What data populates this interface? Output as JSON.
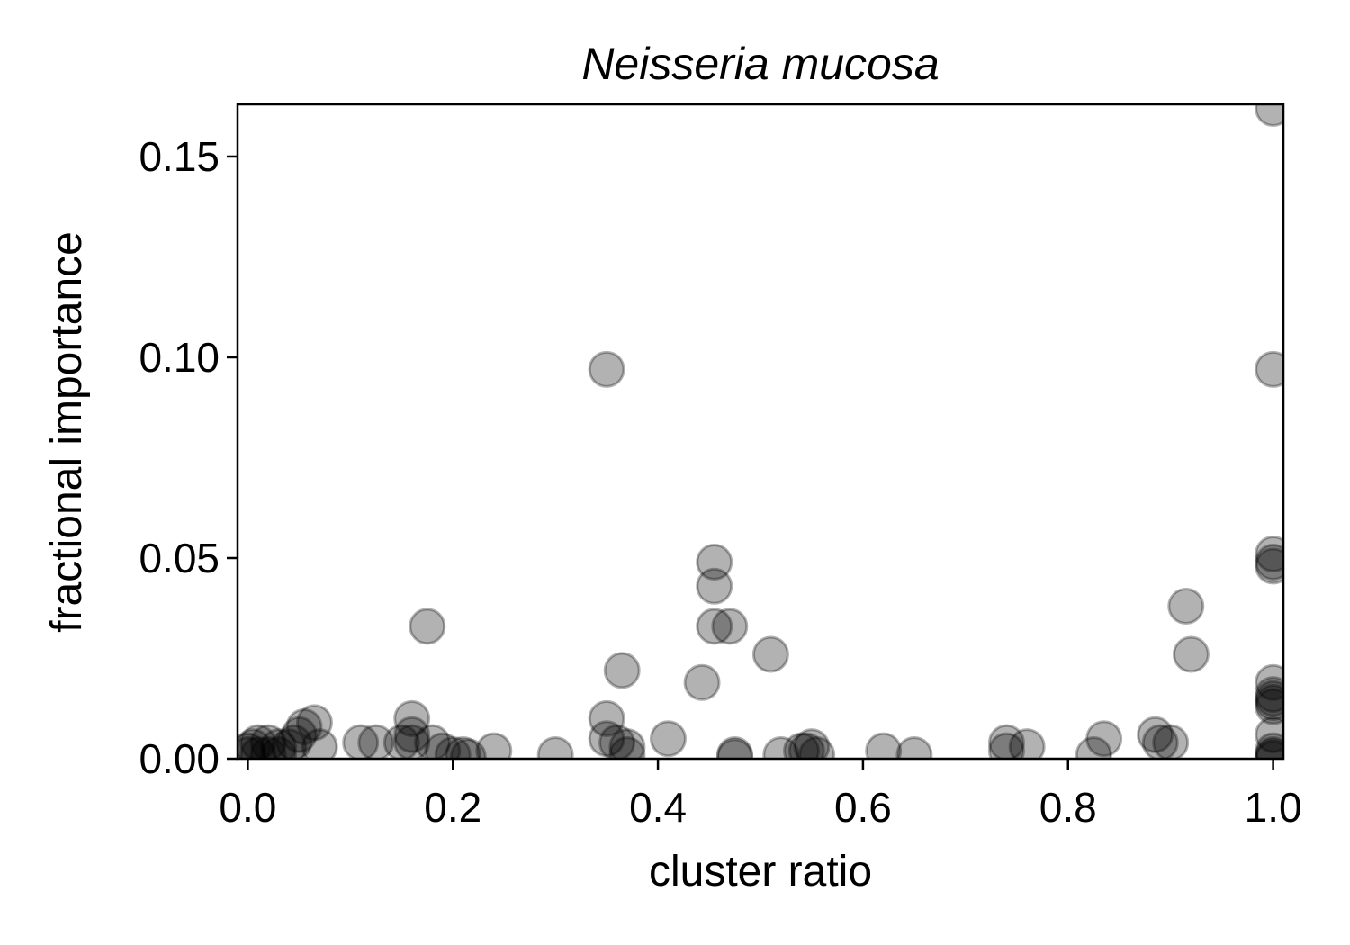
{
  "chart_data": {
    "type": "scatter",
    "title": "Neisseria mucosa",
    "xlabel": "cluster ratio",
    "ylabel": "fractional importance",
    "xlim": [
      -0.01,
      1.01
    ],
    "ylim": [
      0.0,
      0.163
    ],
    "xticks": [
      0.0,
      0.2,
      0.4,
      0.6,
      0.8,
      1.0
    ],
    "xtick_labels": [
      "0.0",
      "0.2",
      "0.4",
      "0.6",
      "0.8",
      "1.0"
    ],
    "yticks": [
      0.0,
      0.05,
      0.1,
      0.15
    ],
    "ytick_labels": [
      "0.00",
      "0.05",
      "0.10",
      "0.15"
    ],
    "grid": false,
    "marker_color": "#000000",
    "marker_alpha": 0.3,
    "points": [
      [
        1.0,
        0.162
      ],
      [
        1.0,
        0.097
      ],
      [
        0.35,
        0.097
      ],
      [
        1.0,
        0.051
      ],
      [
        1.0,
        0.049
      ],
      [
        1.0,
        0.048
      ],
      [
        0.455,
        0.049
      ],
      [
        0.455,
        0.043
      ],
      [
        0.455,
        0.033
      ],
      [
        0.47,
        0.033
      ],
      [
        0.915,
        0.038
      ],
      [
        0.92,
        0.026
      ],
      [
        0.51,
        0.026
      ],
      [
        0.175,
        0.033
      ],
      [
        0.365,
        0.022
      ],
      [
        0.443,
        0.019
      ],
      [
        1.0,
        0.019
      ],
      [
        1.0,
        0.016
      ],
      [
        1.0,
        0.015
      ],
      [
        1.0,
        0.014
      ],
      [
        1.0,
        0.013
      ],
      [
        1.0,
        0.006
      ],
      [
        1.0,
        0.002
      ],
      [
        1.0,
        0.001
      ],
      [
        1.0,
        0.0005
      ],
      [
        1.0,
        0.0
      ],
      [
        0.16,
        0.01
      ],
      [
        0.16,
        0.006
      ],
      [
        0.16,
        0.004
      ],
      [
        0.15,
        0.004
      ],
      [
        0.18,
        0.004
      ],
      [
        0.065,
        0.009
      ],
      [
        0.055,
        0.008
      ],
      [
        0.05,
        0.006
      ],
      [
        0.045,
        0.004
      ],
      [
        0.04,
        0.003
      ],
      [
        0.07,
        0.003
      ],
      [
        0.03,
        0.003
      ],
      [
        0.02,
        0.004
      ],
      [
        0.01,
        0.004
      ],
      [
        0.005,
        0.003
      ],
      [
        0.0,
        0.002
      ],
      [
        0.0,
        0.001
      ],
      [
        0.01,
        0.001
      ],
      [
        0.02,
        0.001
      ],
      [
        0.03,
        0.001
      ],
      [
        0.11,
        0.004
      ],
      [
        0.125,
        0.004
      ],
      [
        0.19,
        0.002
      ],
      [
        0.2,
        0.001
      ],
      [
        0.21,
        0.001
      ],
      [
        0.215,
        0.0005
      ],
      [
        0.24,
        0.002
      ],
      [
        0.3,
        0.001
      ],
      [
        0.35,
        0.01
      ],
      [
        0.35,
        0.005
      ],
      [
        0.36,
        0.004
      ],
      [
        0.37,
        0.003
      ],
      [
        0.37,
        0.001
      ],
      [
        0.41,
        0.005
      ],
      [
        0.475,
        0.001
      ],
      [
        0.475,
        0.0005
      ],
      [
        0.52,
        0.001
      ],
      [
        0.54,
        0.002
      ],
      [
        0.545,
        0.002
      ],
      [
        0.55,
        0.003
      ],
      [
        0.555,
        0.001
      ],
      [
        0.62,
        0.002
      ],
      [
        0.65,
        0.001
      ],
      [
        0.74,
        0.004
      ],
      [
        0.74,
        0.002
      ],
      [
        0.76,
        0.003
      ],
      [
        0.825,
        0.001
      ],
      [
        0.835,
        0.005
      ],
      [
        0.885,
        0.006
      ],
      [
        0.89,
        0.004
      ],
      [
        0.9,
        0.004
      ]
    ]
  }
}
